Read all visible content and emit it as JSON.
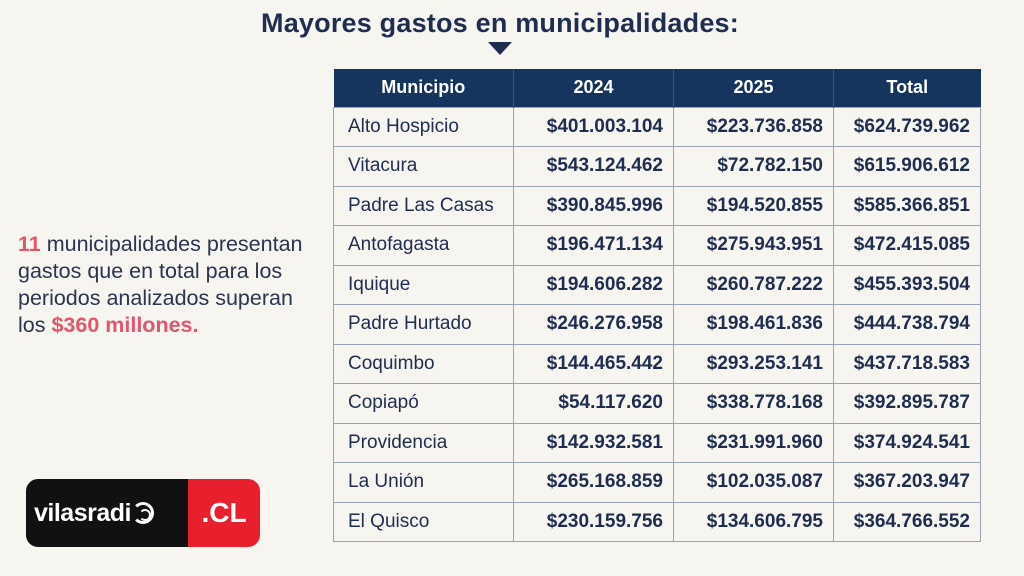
{
  "title": "Mayores gastos en municipalidades:",
  "side_text": {
    "count": "11",
    "text": " municipalidades presentan gastos que en total para los periodos analizados superan los ",
    "highlight": "$360 millones."
  },
  "logo": {
    "left_text": "vilasradi",
    "right_text": ".CL"
  },
  "colors": {
    "header_bg": "#16355e",
    "accent": "#e0566a",
    "title": "#1f2d4f",
    "logo_red": "#e8202e"
  },
  "chart_data": {
    "type": "table",
    "title": "Mayores gastos en municipalidades:",
    "columns": [
      "Municipio",
      "2024",
      "2025",
      "Total"
    ],
    "rows": [
      [
        "Alto Hospicio",
        "$401.003.104",
        "$223.736.858",
        "$624.739.962"
      ],
      [
        "Vitacura",
        "$543.124.462",
        "$72.782.150",
        "$615.906.612"
      ],
      [
        "Padre Las Casas",
        "$390.845.996",
        "$194.520.855",
        "$585.366.851"
      ],
      [
        "Antofagasta",
        "$196.471.134",
        "$275.943.951",
        "$472.415.085"
      ],
      [
        "Iquique",
        "$194.606.282",
        "$260.787.222",
        "$455.393.504"
      ],
      [
        "Padre Hurtado",
        "$246.276.958",
        "$198.461.836",
        "$444.738.794"
      ],
      [
        "Coquimbo",
        "$144.465.442",
        "$293.253.141",
        "$437.718.583"
      ],
      [
        "Copiapó",
        "$54.117.620",
        "$338.778.168",
        "$392.895.787"
      ],
      [
        "Providencia",
        "$142.932.581",
        "$231.991.960",
        "$374.924.541"
      ],
      [
        "La Unión",
        "$265.168.859",
        "$102.035.087",
        "$367.203.947"
      ],
      [
        "El Quisco",
        "$230.159.756",
        "$134.606.795",
        "$364.766.552"
      ]
    ]
  }
}
